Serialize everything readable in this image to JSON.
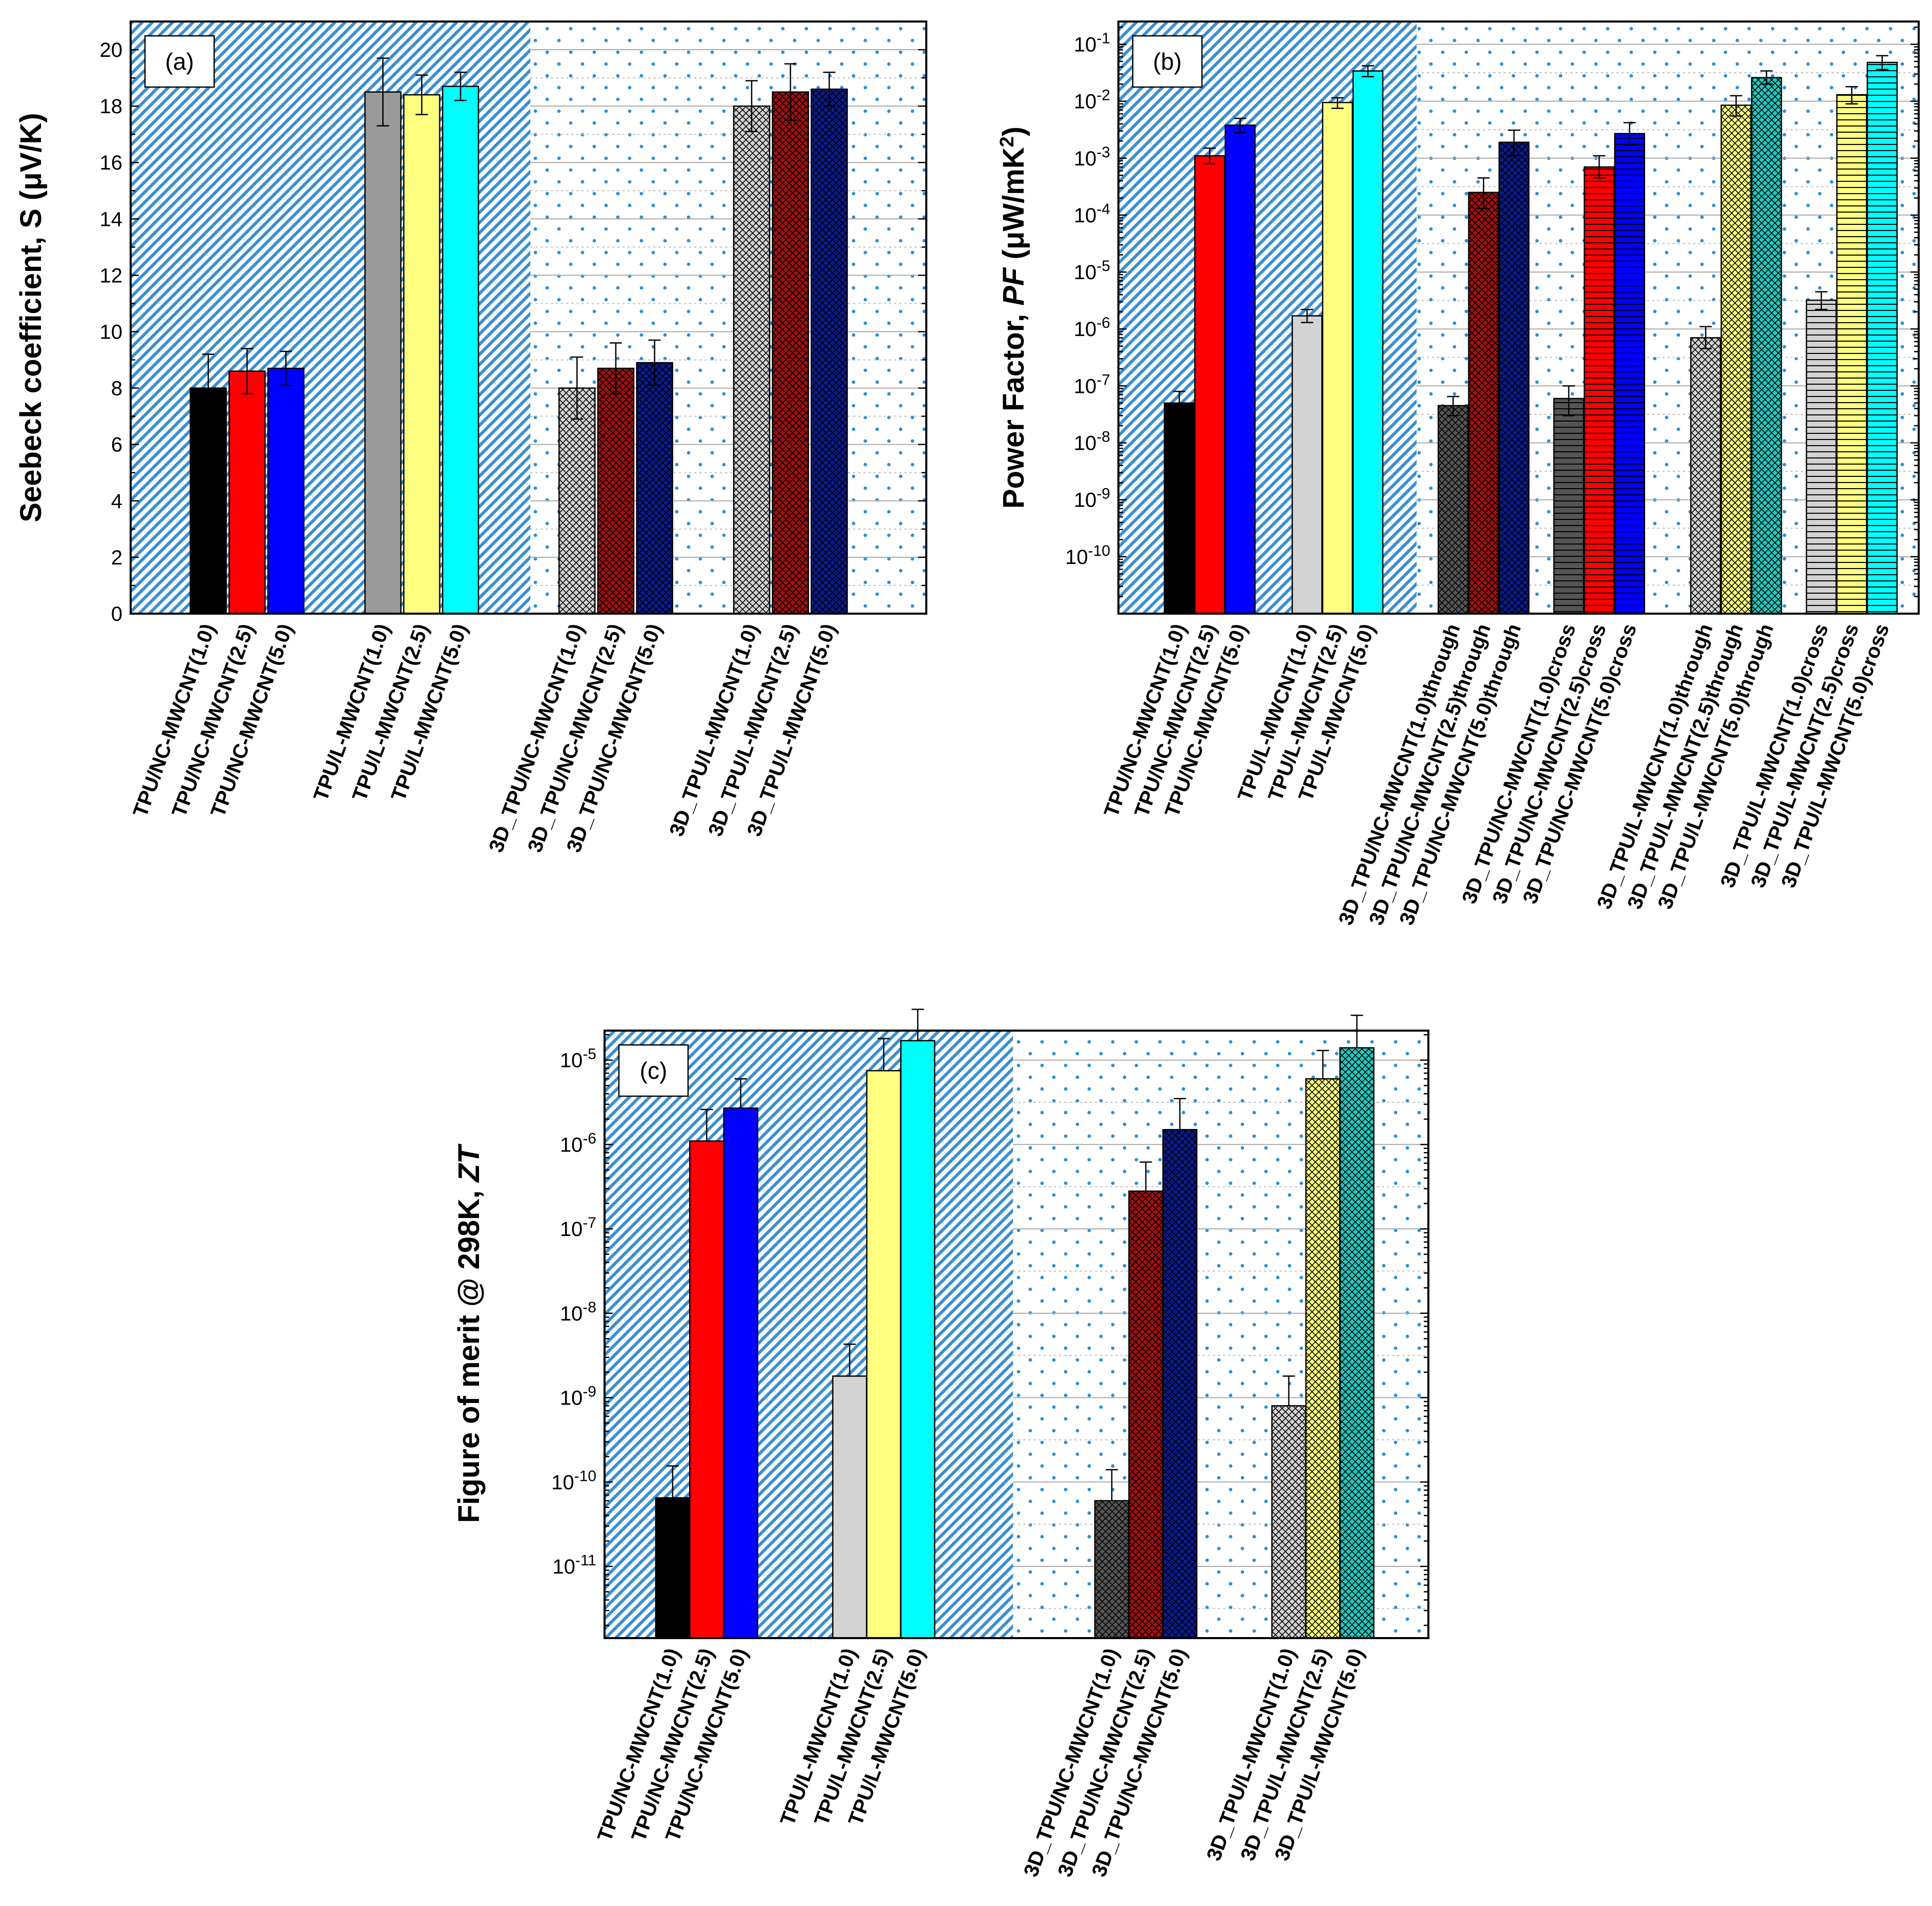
{
  "colors": {
    "black": "#000000",
    "red": "#ff0000",
    "blue": "#0000ff",
    "gray": "#9a9a9a",
    "lightgray": "#d3d3d3",
    "yellow": "#ffff80",
    "cyan": "#00ffff",
    "darkred": "#a01010",
    "navy": "#0a1a8c",
    "darkgray": "#555555",
    "teal": "#20c8c0",
    "hatch": "#3a8fd0",
    "dot": "#2a90d8"
  },
  "chart_data": [
    {
      "id": "a",
      "panel_label": "(a)",
      "type": "bar",
      "scale": "linear",
      "ylabel": "Seebeck coefficient, S (μV/K)",
      "ylim": [
        0,
        21
      ],
      "yticks": [
        0,
        2,
        4,
        6,
        8,
        10,
        12,
        14,
        16,
        18,
        20
      ],
      "ytick_labels": [
        "0",
        "2",
        "4",
        "6",
        "8",
        "10",
        "12",
        "14",
        "16",
        "18",
        "20"
      ],
      "bars": [
        {
          "label": "TPU/NC-MWCNT(1.0)",
          "value": 8.0,
          "err": 1.2,
          "color": "black",
          "pattern": "solid",
          "pos": 1
        },
        {
          "label": "TPU/NC-MWCNT(2.5)",
          "value": 8.6,
          "err": 0.8,
          "color": "red",
          "pattern": "solid",
          "pos": 2
        },
        {
          "label": "TPU/NC-MWCNT(5.0)",
          "value": 8.7,
          "err": 0.6,
          "color": "blue",
          "pattern": "solid",
          "pos": 3
        },
        {
          "label": "TPU/L-MWCNT(1.0)",
          "value": 18.5,
          "err": 1.2,
          "color": "gray",
          "pattern": "solid",
          "pos": 5.5
        },
        {
          "label": "TPU/L-MWCNT(2.5)",
          "value": 18.4,
          "err": 0.7,
          "color": "yellow",
          "pattern": "solid",
          "pos": 6.5
        },
        {
          "label": "TPU/L-MWCNT(5.0)",
          "value": 18.7,
          "err": 0.5,
          "color": "cyan",
          "pattern": "solid",
          "pos": 7.5
        },
        {
          "label": "3D_TPU/NC-MWCNT(1.0)",
          "value": 8.0,
          "err": 1.1,
          "color": "lightgray",
          "pattern": "cross",
          "pos": 10.5
        },
        {
          "label": "3D_TPU/NC-MWCNT(2.5)",
          "value": 8.7,
          "err": 0.9,
          "color": "darkred",
          "pattern": "cross",
          "pos": 11.5
        },
        {
          "label": "3D_TPU/NC-MWCNT(5.0)",
          "value": 8.9,
          "err": 0.8,
          "color": "navy",
          "pattern": "cross",
          "pos": 12.5
        },
        {
          "label": "3D_TPU/L-MWCNT(1.0)",
          "value": 18.0,
          "err": 0.9,
          "color": "lightgray",
          "pattern": "cross",
          "pos": 15
        },
        {
          "label": "3D_TPU/L-MWCNT(2.5)",
          "value": 18.5,
          "err": 1.0,
          "color": "darkred",
          "pattern": "cross",
          "pos": 16
        },
        {
          "label": "3D_TPU/L-MWCNT(5.0)",
          "value": 18.6,
          "err": 0.6,
          "color": "navy",
          "pattern": "cross",
          "pos": 17
        }
      ],
      "xrange": [
        -1,
        19.5
      ],
      "split": 9.3
    },
    {
      "id": "b",
      "panel_label": "(b)",
      "type": "bar",
      "scale": "log",
      "ylabel": "Power Factor, PF (μW/mK2)",
      "ylim": [
        -11,
        -0.6
      ],
      "yticks": [
        -10,
        -9,
        -8,
        -7,
        -6,
        -5,
        -4,
        -3,
        -2,
        -1
      ],
      "ytick_labels": [
        "10-10",
        "10-9",
        "10-8",
        "10-7",
        "10-6",
        "10-5",
        "10-4",
        "10-3",
        "10-2",
        "10-1"
      ],
      "bars": [
        {
          "label": "TPU/NC-MWCNT(1.0)",
          "value": 5e-08,
          "err_hi": 3e-08,
          "err_lo": 1e-08,
          "color": "black",
          "pattern": "solid",
          "pos": 1
        },
        {
          "label": "TPU/NC-MWCNT(2.5)",
          "value": 0.0011,
          "err_hi": 0.0004,
          "err_lo": 0.0003,
          "color": "red",
          "pattern": "solid",
          "pos": 2
        },
        {
          "label": "TPU/NC-MWCNT(5.0)",
          "value": 0.0038,
          "err_hi": 0.0012,
          "err_lo": 0.001,
          "color": "blue",
          "pattern": "solid",
          "pos": 3
        },
        {
          "label": "TPU/L-MWCNT(1.0)",
          "value": 1.7e-06,
          "err_hi": 5e-07,
          "err_lo": 4e-07,
          "color": "lightgray",
          "pattern": "solid",
          "pos": 5.2
        },
        {
          "label": "TPU/L-MWCNT(2.5)",
          "value": 0.0095,
          "err_hi": 0.002,
          "err_lo": 0.002,
          "color": "yellow",
          "pattern": "solid",
          "pos": 6.2
        },
        {
          "label": "TPU/L-MWCNT(5.0)",
          "value": 0.034,
          "err_hi": 0.008,
          "err_lo": 0.007,
          "color": "cyan",
          "pattern": "solid",
          "pos": 7.2
        },
        {
          "label": "3D_TPU/NC-MWCNT(1.0)through",
          "value": 4.5e-08,
          "err_hi": 2e-08,
          "err_lo": 1.5e-08,
          "color": "darkgray",
          "pattern": "cross",
          "pos": 10
        },
        {
          "label": "3D_TPU/NC-MWCNT(2.5)through",
          "value": 0.00025,
          "err_hi": 0.0002,
          "err_lo": 0.00012,
          "color": "darkred",
          "pattern": "cross",
          "pos": 11
        },
        {
          "label": "3D_TPU/NC-MWCNT(5.0)through",
          "value": 0.0019,
          "err_hi": 0.0012,
          "err_lo": 0.0008,
          "color": "navy",
          "pattern": "cross",
          "pos": 12
        },
        {
          "label": "3D_TPU/NC-MWCNT(1.0)cross",
          "value": 6e-08,
          "err_hi": 4e-08,
          "err_lo": 3e-08,
          "color": "darkgray",
          "pattern": "hlines",
          "pos": 13.8
        },
        {
          "label": "3D_TPU/NC-MWCNT(2.5)cross",
          "value": 0.0007,
          "err_hi": 0.0004,
          "err_lo": 0.00025,
          "color": "red",
          "pattern": "hlines",
          "pos": 14.8
        },
        {
          "label": "3D_TPU/NC-MWCNT(5.0)cross",
          "value": 0.0027,
          "err_hi": 0.0015,
          "err_lo": 0.001,
          "color": "blue",
          "pattern": "hlines",
          "pos": 15.8
        },
        {
          "label": "3D_TPU/L-MWCNT(1.0)through",
          "value": 7e-07,
          "err_hi": 4e-07,
          "err_lo": 2.5e-07,
          "color": "lightgray",
          "pattern": "cross",
          "pos": 18.3
        },
        {
          "label": "3D_TPU/L-MWCNT(2.5)through",
          "value": 0.0085,
          "err_hi": 0.004,
          "err_lo": 0.003,
          "color": "yellow",
          "pattern": "cross",
          "pos": 19.3
        },
        {
          "label": "3D_TPU/L-MWCNT(5.0)through",
          "value": 0.026,
          "err_hi": 0.008,
          "err_lo": 0.006,
          "color": "teal",
          "pattern": "cross",
          "pos": 20.3
        },
        {
          "label": "3D_TPU/L-MWCNT(1.0)cross",
          "value": 3.2e-06,
          "err_hi": 1.3e-06,
          "err_lo": 1e-06,
          "color": "lightgray",
          "pattern": "hlines",
          "pos": 22.1
        },
        {
          "label": "3D_TPU/L-MWCNT(2.5)cross",
          "value": 0.013,
          "err_hi": 0.005,
          "err_lo": 0.004,
          "color": "yellow",
          "pattern": "hlines",
          "pos": 23.1
        },
        {
          "label": "3D_TPU/L-MWCNT(5.0)cross",
          "value": 0.048,
          "err_hi": 0.015,
          "err_lo": 0.012,
          "color": "cyan",
          "pattern": "hlines",
          "pos": 24.1
        }
      ],
      "xrange": [
        -1,
        25.3
      ],
      "split": 8.8
    },
    {
      "id": "c",
      "panel_label": "(c)",
      "type": "bar",
      "scale": "log",
      "ylabel": "Figure of merit @ 298K, ZT",
      "ylim": [
        -11.85,
        -4.65
      ],
      "yticks": [
        -11,
        -10,
        -9,
        -8,
        -7,
        -6,
        -5
      ],
      "ytick_labels": [
        "10-11",
        "10-10",
        "10-9",
        "10-8",
        "10-7",
        "10-6",
        "10-5"
      ],
      "bars": [
        {
          "label": "TPU/NC-MWCNT(1.0)",
          "value": 6.5e-11,
          "err_hi": 9e-11,
          "err_lo": 0,
          "color": "black",
          "pattern": "solid",
          "pos": 1
        },
        {
          "label": "TPU/NC-MWCNT(2.5)",
          "value": 1.1e-06,
          "err_hi": 1.5e-06,
          "err_lo": 0,
          "color": "red",
          "pattern": "solid",
          "pos": 2
        },
        {
          "label": "TPU/NC-MWCNT(5.0)",
          "value": 2.7e-06,
          "err_hi": 3.3e-06,
          "err_lo": 0,
          "color": "blue",
          "pattern": "solid",
          "pos": 3
        },
        {
          "label": "TPU/L-MWCNT(1.0)",
          "value": 1.8e-09,
          "err_hi": 2.5e-09,
          "err_lo": 0,
          "color": "lightgray",
          "pattern": "solid",
          "pos": 6.2
        },
        {
          "label": "TPU/L-MWCNT(2.5)",
          "value": 7.5e-06,
          "err_hi": 1.05e-05,
          "err_lo": 0,
          "color": "yellow",
          "pattern": "solid",
          "pos": 7.2
        },
        {
          "label": "TPU/L-MWCNT(5.0)",
          "value": 1.7e-05,
          "err_hi": 2.3e-05,
          "err_lo": 0,
          "color": "cyan",
          "pattern": "solid",
          "pos": 8.2
        },
        {
          "label": "3D_TPU/NC-MWCNT(1.0)",
          "value": 6e-11,
          "err_hi": 8e-11,
          "err_lo": 0,
          "color": "darkgray",
          "pattern": "cross",
          "pos": 13.9
        },
        {
          "label": "3D_TPU/NC-MWCNT(2.5)",
          "value": 2.8e-07,
          "err_hi": 3.4e-07,
          "err_lo": 0,
          "color": "darkred",
          "pattern": "cross",
          "pos": 14.9
        },
        {
          "label": "3D_TPU/NC-MWCNT(5.0)",
          "value": 1.5e-06,
          "err_hi": 2e-06,
          "err_lo": 0,
          "color": "navy",
          "pattern": "cross",
          "pos": 15.9
        },
        {
          "label": "3D_TPU/L-MWCNT(1.0)",
          "value": 8e-10,
          "err_hi": 1e-09,
          "err_lo": 0,
          "color": "lightgray",
          "pattern": "cross",
          "pos": 19.1
        },
        {
          "label": "3D_TPU/L-MWCNT(2.5)",
          "value": 6e-06,
          "err_hi": 7e-06,
          "err_lo": 0,
          "color": "yellow",
          "pattern": "cross",
          "pos": 20.1
        },
        {
          "label": "3D_TPU/L-MWCNT(5.0)",
          "value": 1.4e-05,
          "err_hi": 2e-05,
          "err_lo": 0,
          "color": "teal",
          "pattern": "cross",
          "pos": 21.1
        }
      ],
      "xrange": [
        -1,
        23.2
      ],
      "split": 11.0
    }
  ]
}
